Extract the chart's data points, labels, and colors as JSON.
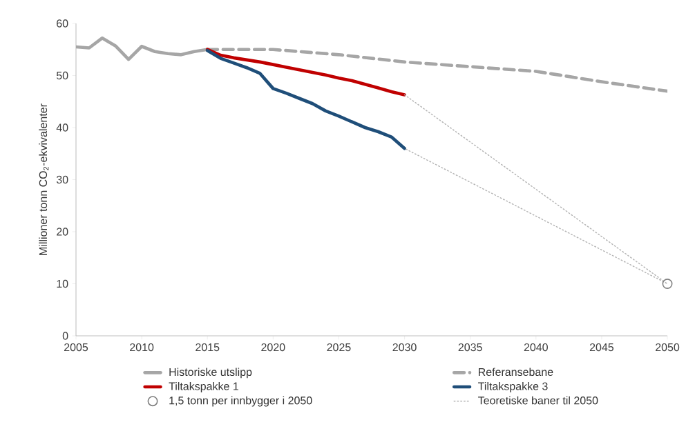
{
  "chart_data": {
    "type": "line",
    "ylabel": "Millioner tonn CO$_{2}$-ekvivalenter",
    "xlim": [
      2005,
      2050
    ],
    "ylim": [
      0,
      60
    ],
    "xticks": [
      2005,
      2010,
      2015,
      2020,
      2025,
      2030,
      2035,
      2040,
      2045,
      2050
    ],
    "yticks": [
      0,
      10,
      20,
      30,
      40,
      50,
      60
    ],
    "grid": false,
    "legend": "bottom",
    "marker": "none",
    "series": [
      {
        "name": "Historiske utslipp",
        "color": "#a6a6a6",
        "line_style": "solid",
        "x": [
          2005,
          2006,
          2007,
          2008,
          2009,
          2010,
          2011,
          2012,
          2013,
          2014,
          2015
        ],
        "values": [
          55.5,
          55.3,
          57.2,
          55.7,
          53.1,
          55.6,
          54.6,
          54.2,
          54.0,
          54.6,
          55.0
        ]
      },
      {
        "name": "Referansebane",
        "color": "#a6a6a6",
        "line_style": "dashed",
        "x": [
          2015,
          2020,
          2025,
          2030,
          2035,
          2040,
          2045,
          2050
        ],
        "values": [
          55.0,
          55.0,
          54.0,
          52.6,
          51.7,
          50.8,
          48.8,
          47.0
        ]
      },
      {
        "name": "Tiltakspakke 1",
        "color": "#c00000",
        "line_style": "solid",
        "x": [
          2015,
          2016,
          2017,
          2018,
          2019,
          2020,
          2021,
          2022,
          2023,
          2024,
          2025,
          2026,
          2027,
          2028,
          2029,
          2030
        ],
        "values": [
          55.0,
          53.9,
          53.4,
          53.0,
          52.6,
          52.1,
          51.6,
          51.1,
          50.6,
          50.1,
          49.5,
          49.0,
          48.3,
          47.6,
          46.9,
          46.3
        ]
      },
      {
        "name": "Tiltakspakke 3",
        "color": "#1f4e79",
        "line_style": "solid",
        "x": [
          2015,
          2016,
          2017,
          2018,
          2019,
          2020,
          2021,
          2022,
          2023,
          2024,
          2025,
          2026,
          2027,
          2028,
          2029,
          2030
        ],
        "values": [
          54.8,
          53.3,
          52.4,
          51.5,
          50.4,
          47.5,
          46.6,
          45.6,
          44.6,
          43.2,
          42.2,
          41.1,
          40.0,
          39.2,
          38.2,
          36.0
        ]
      },
      {
        "name": "1,5 tonn per innbygger i 2050",
        "type": "scatter",
        "color": "#7f7f7f",
        "marker": "circle",
        "x": [
          2050
        ],
        "values": [
          10
        ]
      },
      {
        "name": "Teoretiske baner til 2050",
        "color": "#b4b4b4",
        "line_style": "dotted",
        "x": [
          2030,
          2050,
          2030
        ],
        "values": [
          46.3,
          10,
          36.0
        ]
      }
    ]
  }
}
